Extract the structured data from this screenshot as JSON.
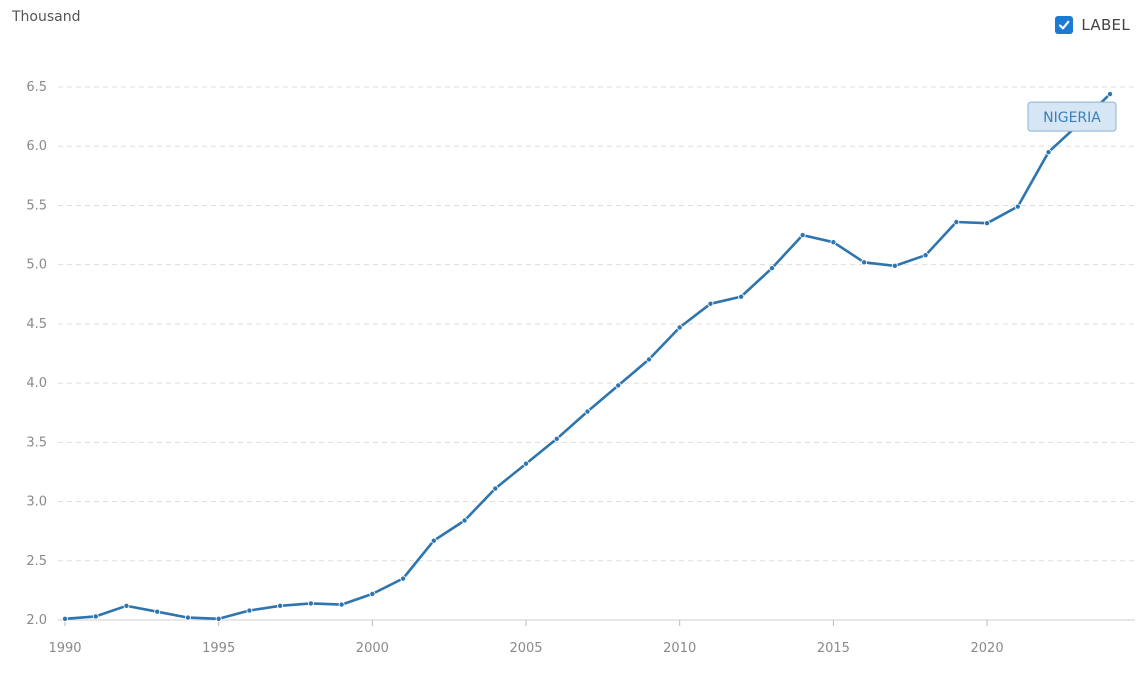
{
  "chart_data": {
    "type": "line",
    "unit_label": "Thousand",
    "x": [
      1990,
      1991,
      1992,
      1993,
      1994,
      1995,
      1996,
      1997,
      1998,
      1999,
      2000,
      2001,
      2002,
      2003,
      2004,
      2005,
      2006,
      2007,
      2008,
      2009,
      2010,
      2011,
      2012,
      2013,
      2014,
      2015,
      2016,
      2017,
      2018,
      2019,
      2020,
      2021,
      2022,
      2023,
      2024
    ],
    "series": [
      {
        "name": "NIGERIA",
        "color": "#2e75b0",
        "values": [
          2.01,
          2.03,
          2.12,
          2.07,
          2.02,
          2.01,
          2.08,
          2.12,
          2.14,
          2.13,
          2.22,
          2.35,
          2.67,
          2.84,
          3.11,
          3.32,
          3.53,
          3.76,
          3.98,
          4.2,
          4.47,
          4.67,
          4.73,
          4.97,
          5.25,
          5.19,
          5.02,
          4.99,
          5.08,
          5.36,
          5.35,
          5.49,
          5.95,
          6.19,
          6.44
        ]
      }
    ],
    "ylim": [
      2.0,
      6.5
    ],
    "yticks": [
      "2.0",
      "2.5",
      "3.0",
      "3.5",
      "4.0",
      "4.5",
      "5.0",
      "5.5",
      "6.0",
      "6.5"
    ],
    "xticks": [
      "1990",
      "1995",
      "2000",
      "2005",
      "2010",
      "2015",
      "2020"
    ],
    "grid": true
  },
  "controls": {
    "label_toggle": {
      "text": "LABEL",
      "checked": true,
      "color": "#1a7ad4"
    }
  }
}
